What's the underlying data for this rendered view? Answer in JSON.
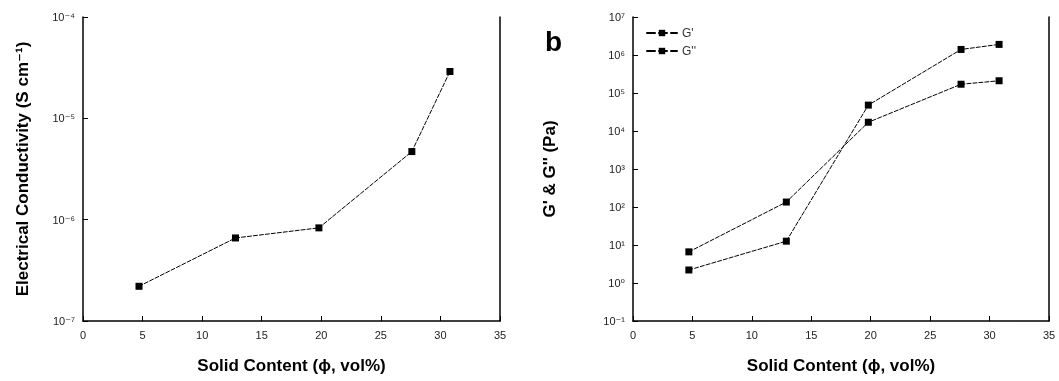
{
  "chart_data": [
    {
      "type": "line",
      "xlabel": "Solid Content (ϕ, vol%)",
      "ylabel": "Electrical Conductivity (S cm⁻¹)",
      "x": [
        4.7,
        12.8,
        19.8,
        27.6,
        30.8
      ],
      "series": [
        {
          "color": "#000000",
          "values": [
            2.2e-07,
            6.6e-07,
            8.3e-07,
            4.7e-06,
            2.9e-05
          ]
        }
      ],
      "xlim": [
        0,
        35
      ],
      "xticks": [
        0,
        5,
        10,
        15,
        20,
        25,
        30,
        35
      ],
      "ylim": [
        1e-07,
        0.0001
      ],
      "yticks": [
        {
          "value": 1e-07,
          "label": "10⁻⁷"
        },
        {
          "value": 1e-06,
          "label": "10⁻⁶"
        },
        {
          "value": 1e-05,
          "label": "10⁻⁵"
        },
        {
          "value": 0.0001,
          "label": "10⁻⁴"
        }
      ],
      "log": "y",
      "grid": false,
      "legend": false,
      "marker": "square",
      "line_style": "dashed"
    },
    {
      "type": "line",
      "title": "b",
      "xlabel": "Solid Content (ϕ, vol%)",
      "ylabel": "G' & G'' (Pa)",
      "x": [
        4.7,
        12.9,
        19.8,
        27.6,
        30.8
      ],
      "series": [
        {
          "name": "G'",
          "color": "#000000",
          "values": [
            2.2,
            12.6,
            48000.0,
            1400000.0,
            1900000.0
          ]
        },
        {
          "name": "G''",
          "color": "#000000",
          "values": [
            6.6,
            135,
            17000.0,
            170000.0,
            210000.0
          ]
        }
      ],
      "xlim": [
        0,
        35
      ],
      "xticks": [
        0,
        5,
        10,
        15,
        20,
        25,
        30,
        35
      ],
      "ylim": [
        0.1,
        10000000.0
      ],
      "yticks": [
        {
          "value": 0.1,
          "label": "10⁻¹"
        },
        {
          "value": 1,
          "label": "10⁰"
        },
        {
          "value": 10,
          "label": "10¹"
        },
        {
          "value": 100,
          "label": "10²"
        },
        {
          "value": 1000,
          "label": "10³"
        },
        {
          "value": 10000.0,
          "label": "10⁴"
        },
        {
          "value": 100000.0,
          "label": "10⁵"
        },
        {
          "value": 1000000.0,
          "label": "10⁶"
        },
        {
          "value": 10000000.0,
          "label": "10⁷"
        }
      ],
      "log": "y",
      "grid": false,
      "legend": "top left",
      "marker": "square",
      "line_style": "dashed"
    }
  ]
}
